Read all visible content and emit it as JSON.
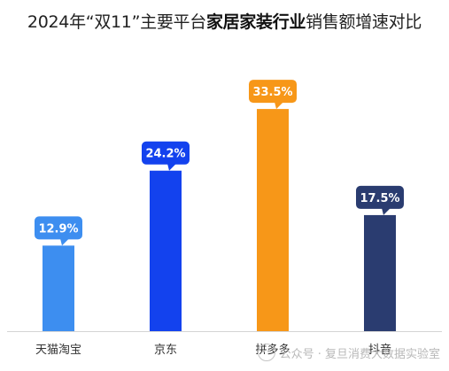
{
  "title": {
    "prefix": "2024年“双11”主要平台",
    "highlight": "家居家装行业",
    "suffix": "销售额增速对比"
  },
  "chart_data": {
    "type": "bar",
    "title": "2024年“双11”主要平台家居家装行业销售额增速对比",
    "categories": [
      "天猫淘宝",
      "京东",
      "拼多多",
      "抖音"
    ],
    "values": [
      12.9,
      24.2,
      33.5,
      17.5
    ],
    "value_labels": [
      "12.9%",
      "24.2%",
      "33.5%",
      "17.5%"
    ],
    "colors": [
      "#3d8ef0",
      "#1342ee",
      "#f79718",
      "#2a3c70"
    ],
    "unit": "%",
    "ylim": [
      0,
      36
    ],
    "grid": false,
    "legend": "none"
  },
  "watermark": {
    "icon": "wechat-icon",
    "text": "公众号 · 复旦消费大数据实验室"
  }
}
